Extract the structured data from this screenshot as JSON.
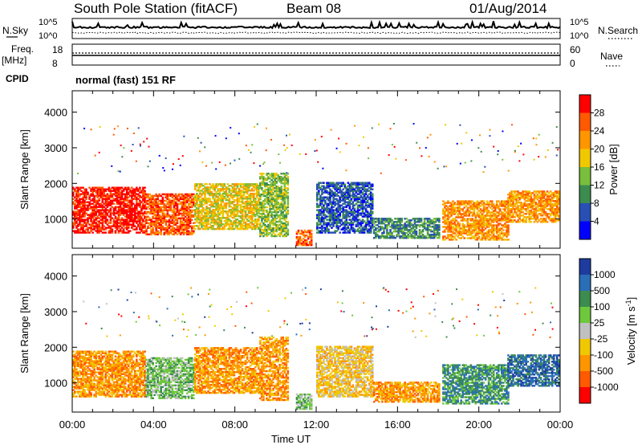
{
  "header": {
    "station": "South Pole Station (fitACF)",
    "beam": "Beam 08",
    "date": "01/Aug/2014"
  },
  "strips": {
    "nsky_label": "N.Sky",
    "nsky_ticks": [
      "10^5",
      "10^0"
    ],
    "nsearch_label": "N.Search",
    "nsearch_ticks": [
      "10^5",
      "10^0"
    ],
    "freq_label": "Freq.",
    "freq_unit": "[MHz]",
    "freq_ticks": [
      "18",
      "8"
    ],
    "nave_label": "Nave",
    "nave_ticks": [
      "60",
      "0"
    ],
    "cpid_label": "CPID",
    "cpid_value": "normal (fast) 151 RF"
  },
  "chart_data": [
    {
      "type": "heatmap",
      "panel": "power",
      "ylabel": "Slant Range [km]",
      "xlabel": "Time UT",
      "y_ticks": [
        1000,
        2000,
        3000,
        4000
      ],
      "x_ticks": [
        "00:00",
        "04:00",
        "08:00",
        "12:00",
        "16:00",
        "20:00",
        "00:00"
      ],
      "xlim_hours": [
        0,
        24
      ],
      "ylim_km": [
        180,
        4600
      ],
      "colorbar": {
        "label": "Power [dB]",
        "ticks": [
          "28",
          "24",
          "20",
          "16",
          "12",
          "8",
          "4"
        ],
        "colors": [
          "#ff0000",
          "#ff5a00",
          "#ff9600",
          "#f0c800",
          "#79be3c",
          "#3c8c50",
          "#2850b4",
          "#0000ff"
        ]
      },
      "echo_regions": [
        {
          "t": [
            0.0,
            3.6
          ],
          "r": [
            600,
            1900
          ],
          "level": 0.95
        },
        {
          "t": [
            3.6,
            6.0
          ],
          "r": [
            550,
            1700
          ],
          "level": 0.9
        },
        {
          "t": [
            6.0,
            9.2
          ],
          "r": [
            700,
            2000
          ],
          "level": 0.6
        },
        {
          "t": [
            9.2,
            10.6
          ],
          "r": [
            500,
            2300
          ],
          "level": 0.45
        },
        {
          "t": [
            11.0,
            11.8
          ],
          "r": [
            250,
            700
          ],
          "level": 0.9
        },
        {
          "t": [
            12.0,
            14.8
          ],
          "r": [
            600,
            2000
          ],
          "level": 0.2
        },
        {
          "t": [
            14.8,
            18.0
          ],
          "r": [
            450,
            1000
          ],
          "level": 0.3
        },
        {
          "t": [
            18.2,
            21.4
          ],
          "r": [
            400,
            1500
          ],
          "level": 0.75
        },
        {
          "t": [
            21.4,
            23.9
          ],
          "r": [
            900,
            1800
          ],
          "level": 0.65
        }
      ]
    },
    {
      "type": "heatmap",
      "panel": "velocity",
      "ylabel": "Slant Range [km]",
      "xlabel": "Time UT",
      "y_ticks": [
        1000,
        2000,
        3000,
        4000
      ],
      "x_ticks": [
        "00:00",
        "04:00",
        "08:00",
        "12:00",
        "16:00",
        "20:00",
        "00:00"
      ],
      "xlim_hours": [
        0,
        24
      ],
      "ylim_km": [
        180,
        4600
      ],
      "colorbar": {
        "label": "Velocity [m s",
        "label_exp": "-1",
        "label_close": "]",
        "ticks": [
          "1000",
          "500",
          "100",
          "25",
          "-25",
          "-100",
          "-500",
          "-1000"
        ],
        "colors": [
          "#1e3ca0",
          "#2a6eb8",
          "#3c8c50",
          "#6ec83c",
          "#c0c0c0",
          "#f0c800",
          "#ff9600",
          "#ff5a00",
          "#ff0000"
        ]
      },
      "echo_regions": [
        {
          "t": [
            0.0,
            3.6
          ],
          "r": [
            600,
            1900
          ],
          "vel": -300
        },
        {
          "t": [
            3.6,
            6.0
          ],
          "r": [
            550,
            1700
          ],
          "vel": 50
        },
        {
          "t": [
            6.0,
            9.2
          ],
          "r": [
            700,
            2000
          ],
          "vel": -200
        },
        {
          "t": [
            9.2,
            10.6
          ],
          "r": [
            500,
            2300
          ],
          "vel": -400
        },
        {
          "t": [
            11.0,
            11.8
          ],
          "r": [
            250,
            700
          ],
          "vel": 60
        },
        {
          "t": [
            12.0,
            14.8
          ],
          "r": [
            600,
            2000
          ],
          "vel": -60
        },
        {
          "t": [
            14.8,
            18.0
          ],
          "r": [
            450,
            1000
          ],
          "vel": -300
        },
        {
          "t": [
            18.2,
            21.4
          ],
          "r": [
            400,
            1500
          ],
          "vel": 400
        },
        {
          "t": [
            21.4,
            23.9
          ],
          "r": [
            900,
            1800
          ],
          "vel": 700
        }
      ]
    }
  ]
}
